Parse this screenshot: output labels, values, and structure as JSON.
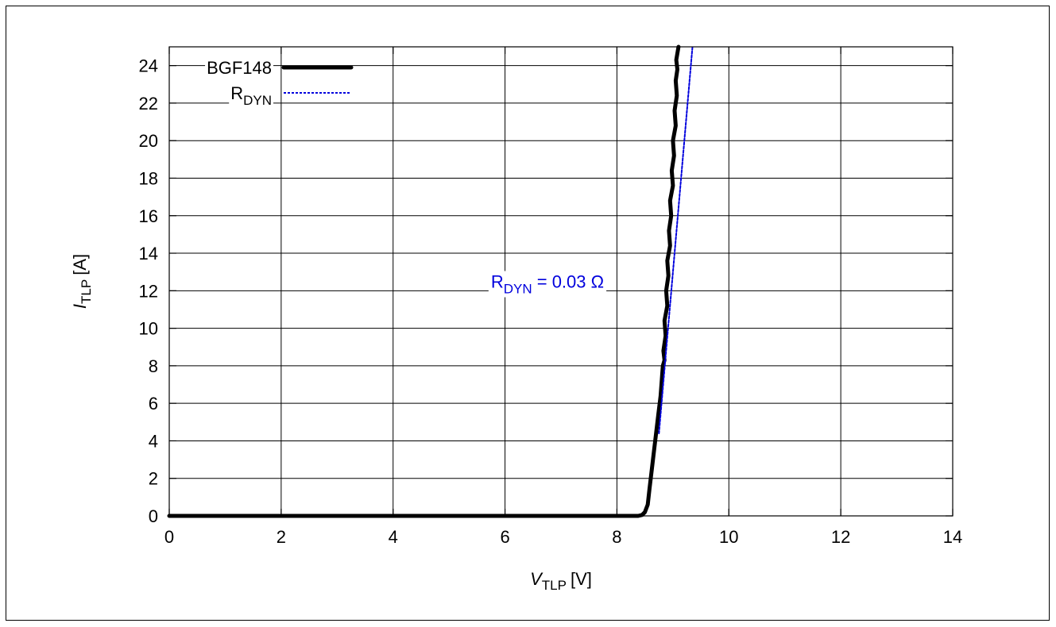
{
  "chart_data": {
    "type": "line",
    "xlabel": {
      "main": "V",
      "sub": "TLP",
      "unit": "[V]"
    },
    "ylabel": {
      "main": "I",
      "sub": "TLP",
      "unit": "[A]"
    },
    "xlim": [
      0,
      14
    ],
    "ylim": [
      0,
      25
    ],
    "xticks": [
      0,
      2,
      4,
      6,
      8,
      10,
      12,
      14
    ],
    "yticks": [
      0,
      2,
      4,
      6,
      8,
      10,
      12,
      14,
      16,
      18,
      20,
      22,
      24
    ],
    "grid": true,
    "legend_position": "top-left",
    "series": [
      {
        "name": "BGF148",
        "style": "solid",
        "color": "#000000",
        "x": [
          0,
          1,
          2,
          3,
          4,
          4.9,
          5.95,
          7.65,
          8.38,
          8.45,
          8.5,
          8.55,
          8.58,
          8.62,
          8.66,
          8.7,
          8.74,
          8.78,
          8.8,
          8.82,
          8.85,
          8.83,
          8.87,
          8.85,
          8.9,
          8.88,
          8.92,
          8.9,
          8.95,
          8.93,
          8.97,
          8.95,
          9.0,
          8.98,
          9.02,
          9.0,
          9.05,
          9.03,
          9.07,
          9.05,
          9.08,
          9.06,
          9.1
        ],
        "y": [
          0,
          0,
          0,
          0,
          0,
          0,
          0,
          0,
          0,
          0.05,
          0.2,
          0.6,
          1.4,
          2.4,
          3.4,
          4.4,
          5.4,
          6.4,
          7.2,
          8.0,
          8.3,
          8.8,
          9.6,
          10.4,
          11.2,
          12.0,
          12.8,
          13.6,
          14.4,
          15.2,
          16.0,
          16.8,
          17.6,
          18.4,
          19.2,
          20.0,
          20.8,
          21.6,
          22.4,
          23.2,
          23.8,
          24.3,
          25.0
        ]
      },
      {
        "name": "RDYN",
        "style": "dotted",
        "color": "#0000dd",
        "x": [
          8.75,
          9.35
        ],
        "y": [
          4.4,
          25.0
        ]
      }
    ],
    "annotations": [
      {
        "text_main": "R",
        "text_sub": "DYN",
        "text_rest": " = 0.03 Ω",
        "x": 6.6,
        "y": 12.5,
        "color": "#0000dd"
      }
    ],
    "legend": [
      {
        "label_main": "BGF148",
        "label_sub": ""
      },
      {
        "label_main": "R",
        "label_sub": "DYN"
      }
    ]
  }
}
